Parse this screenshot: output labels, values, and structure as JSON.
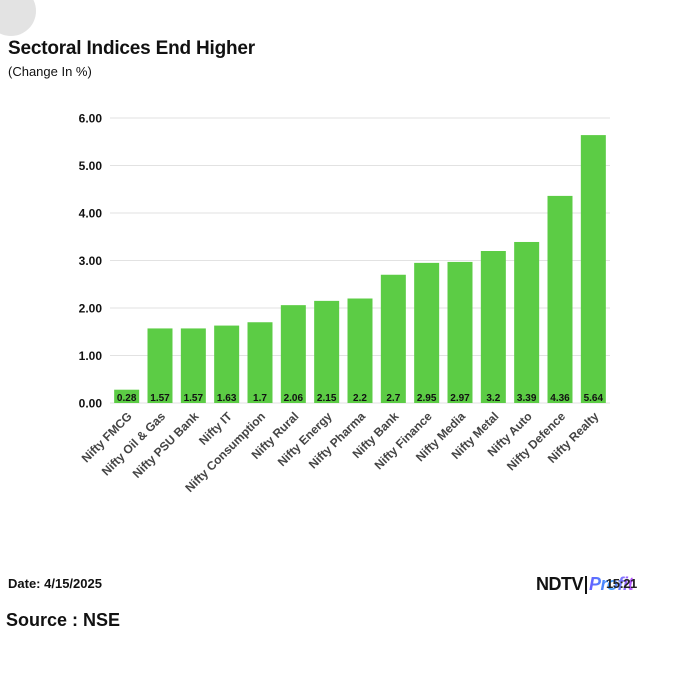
{
  "header": {
    "title": "Sectoral Indices End Higher",
    "subtitle": "(Change In %)"
  },
  "footer": {
    "date": "Date: 4/15/2025",
    "source": "Source : NSE",
    "logo_ndtv": "NDTV",
    "logo_profit": "Profit",
    "logo_overlay_text": "15:21"
  },
  "colors": {
    "bar": "#5ccc45",
    "grid": "#e2e2e2",
    "text": "#111111"
  },
  "chart_data": {
    "type": "bar",
    "title": "Sectoral Indices End Higher",
    "subtitle": "(Change In %)",
    "categories": [
      "Nifty FMCG",
      "Nifty Oil & Gas",
      "Nifty PSU Bank",
      "Nifty IT",
      "Nifty Consumption",
      "Nifty Rural",
      "Nifty Energy",
      "Nifty Pharma",
      "Nifty Bank",
      "Nifty Finance",
      "Nifty Media",
      "Nifty Metal",
      "Nifty Auto",
      "Nifty Defence",
      "Nifty Realty"
    ],
    "values": [
      0.28,
      1.57,
      1.57,
      1.63,
      1.7,
      2.06,
      2.15,
      2.2,
      2.7,
      2.95,
      2.97,
      3.2,
      3.39,
      4.36,
      5.64
    ],
    "value_labels": [
      "0.28",
      "1.57",
      "1.57",
      "1.63",
      "1.7",
      "2.06",
      "2.15",
      "2.2",
      "2.7",
      "2.95",
      "2.97",
      "3.2",
      "3.39",
      "4.36",
      "5.64"
    ],
    "yticks": [
      "0.00",
      "1.00",
      "2.00",
      "3.00",
      "4.00",
      "5.00",
      "6.00"
    ],
    "ylim": [
      0,
      6
    ],
    "xlabel": "",
    "ylabel": "",
    "grid": true,
    "legend": "none"
  }
}
